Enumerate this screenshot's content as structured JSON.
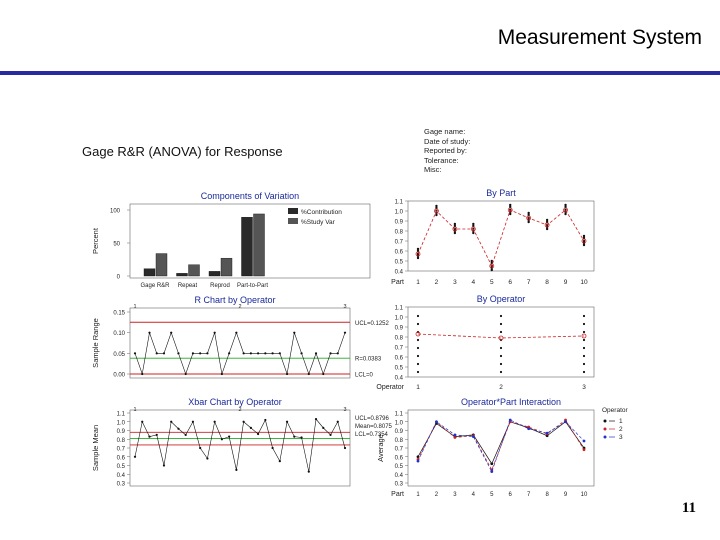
{
  "slide": {
    "title": "Measurement System",
    "page_number": "11"
  },
  "figure": {
    "main_title": "Gage R&R (ANOVA) for Response",
    "info_lines": [
      "Gage name:",
      "Date of study:",
      "Reported by:",
      "Tolerance:",
      "Misc:"
    ]
  },
  "chart_data": [
    {
      "type": "bar",
      "title": "Components of Variation",
      "ylabel": "Percent",
      "ylim": [
        0,
        100
      ],
      "yticks": [
        "0",
        "50",
        "100"
      ],
      "categories": [
        "Gage R&R",
        "Repeat",
        "Reprod",
        "Part-to-Part"
      ],
      "series": [
        {
          "name": "%Contribution",
          "values": [
            11,
            4,
            7,
            89
          ]
        },
        {
          "name": "%Study Var",
          "values": [
            34,
            17,
            27,
            94
          ]
        }
      ],
      "colors": {
        "contribution": "#2a2a2a",
        "study_var": "#555555"
      }
    },
    {
      "type": "scatter",
      "title": "By Part",
      "xlabel": "Part",
      "categories": [
        "1",
        "2",
        "3",
        "4",
        "5",
        "6",
        "7",
        "8",
        "9",
        "10"
      ],
      "ylim": [
        0.4,
        1.1
      ],
      "yticks": [
        "1.1",
        "1.0",
        "0.9",
        "0.8",
        "0.7",
        "0.6",
        "0.5",
        "0.4"
      ],
      "means": [
        0.57,
        1.0,
        0.82,
        0.82,
        0.45,
        1.01,
        0.93,
        0.86,
        1.01,
        0.7
      ],
      "colors": {
        "line": "#cc2222",
        "points": "#111111"
      }
    },
    {
      "type": "line",
      "title": "R Chart by Operator",
      "ylabel": "Sample Range",
      "ylim": [
        0,
        0.15
      ],
      "yticks": [
        "0.15",
        "0.10",
        "0.05",
        "0.00"
      ],
      "operator_labels": [
        "1",
        "2",
        "3"
      ],
      "values": [
        0.05,
        0.0,
        0.1,
        0.05,
        0.05,
        0.1,
        0.05,
        0.0,
        0.05,
        0.05,
        0.05,
        0.1,
        0.0,
        0.05,
        0.1,
        0.05,
        0.05,
        0.05,
        0.05,
        0.05,
        0.05,
        0.0,
        0.1,
        0.05,
        0.0,
        0.05,
        0.0,
        0.05,
        0.05,
        0.1
      ],
      "limits": [
        {
          "label": "UCL=0.1252",
          "value": 0.1252,
          "color": "#cc2222"
        },
        {
          "label": "R=0.0383",
          "value": 0.0383,
          "color": "#22aa22"
        },
        {
          "label": "LCL=0",
          "value": 0.0,
          "color": "#cc2222"
        }
      ]
    },
    {
      "type": "scatter",
      "title": "By Operator",
      "xlabel": "Operator",
      "categories": [
        "1",
        "2",
        "3"
      ],
      "ylim": [
        0.4,
        1.1
      ],
      "yticks": [
        "1.1",
        "1.0",
        "0.9",
        "0.8",
        "0.7",
        "0.6",
        "0.5",
        "0.4"
      ],
      "means": [
        0.83,
        0.79,
        0.81
      ],
      "colors": {
        "line": "#cc2222",
        "points": "#111111"
      }
    },
    {
      "type": "line",
      "title": "Xbar Chart by Operator",
      "ylabel": "Sample Mean",
      "ylim": [
        0.3,
        1.1
      ],
      "yticks": [
        "1.1",
        "1.0",
        "0.9",
        "0.8",
        "0.7",
        "0.6",
        "0.5",
        "0.4",
        "0.3"
      ],
      "operator_labels": [
        "1",
        "2",
        "3"
      ],
      "values": [
        0.6,
        1.0,
        0.83,
        0.85,
        0.5,
        1.0,
        0.92,
        0.85,
        1.0,
        0.7,
        0.58,
        1.0,
        0.8,
        0.83,
        0.45,
        1.0,
        0.93,
        0.86,
        1.02,
        0.7,
        0.55,
        1.0,
        0.83,
        0.82,
        0.43,
        1.03,
        0.93,
        0.85,
        1.0,
        0.7
      ],
      "limits": [
        {
          "label": "UCL=0.8796",
          "value": 0.8796,
          "color": "#cc2222"
        },
        {
          "label": "Mean=0.8075",
          "value": 0.8075,
          "color": "#22aa22"
        },
        {
          "label": "LCL=0.7354",
          "value": 0.7354,
          "color": "#cc2222"
        }
      ]
    },
    {
      "type": "line",
      "title": "Operator*Part Interaction",
      "ylabel": "Average",
      "xlabel": "Part",
      "categories": [
        "1",
        "2",
        "3",
        "4",
        "5",
        "6",
        "7",
        "8",
        "9",
        "10"
      ],
      "ylim": [
        0.3,
        1.1
      ],
      "yticks": [
        "1.1",
        "1.0",
        "0.9",
        "0.8",
        "0.7",
        "0.6",
        "0.5",
        "0.4",
        "0.3"
      ],
      "legend_title": "Operator",
      "legend_position": "right",
      "series": [
        {
          "name": "1",
          "color": "#111111",
          "values": [
            0.6,
            0.98,
            0.83,
            0.85,
            0.52,
            1.0,
            0.93,
            0.84,
            1.0,
            0.7
          ]
        },
        {
          "name": "2",
          "color": "#cc2222",
          "values": [
            0.57,
            1.0,
            0.82,
            0.84,
            0.45,
            1.0,
            0.94,
            0.86,
            1.02,
            0.68
          ]
        },
        {
          "name": "3",
          "color": "#2233cc",
          "values": [
            0.55,
            1.0,
            0.85,
            0.83,
            0.43,
            1.02,
            0.92,
            0.87,
            1.0,
            0.78
          ]
        }
      ]
    }
  ]
}
